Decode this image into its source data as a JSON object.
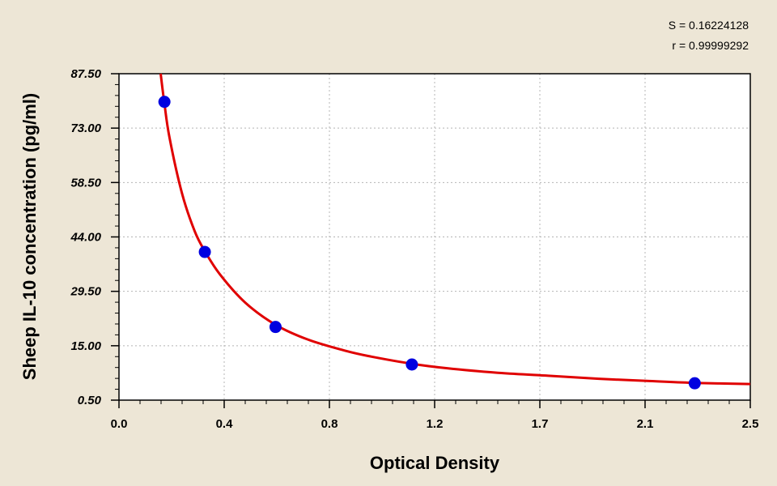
{
  "stats": {
    "s": "S = 0.16224128",
    "r": "r = 0.99999292"
  },
  "chart_data": {
    "type": "scatter",
    "xlabel": "Optical Density",
    "ylabel": "Sheep IL-10 concentration (pg/ml)",
    "xlim": [
      0.0,
      2.5
    ],
    "ylim": [
      0.5,
      87.5
    ],
    "x_ticks": [
      "0.0",
      "0.4",
      "0.8",
      "1.2",
      "1.7",
      "2.1",
      "2.5"
    ],
    "y_ticks": [
      "0.50",
      "15.00",
      "29.50",
      "44.00",
      "58.50",
      "73.00",
      "87.50"
    ],
    "grid": true,
    "series": [
      {
        "kind": "points",
        "color": "#0000e0",
        "x": [
          0.18,
          0.34,
          0.62,
          1.16,
          2.28
        ],
        "y": [
          80.0,
          40.0,
          20.0,
          10.0,
          5.0
        ]
      },
      {
        "kind": "fit-curve",
        "color": "#e00000",
        "x": [
          0.165,
          0.18,
          0.2,
          0.25,
          0.3,
          0.34,
          0.4,
          0.5,
          0.62,
          0.75,
          0.9,
          1.0,
          1.16,
          1.3,
          1.5,
          1.7,
          1.9,
          2.1,
          2.28,
          2.5
        ],
        "y": [
          87.5,
          79.5,
          70.5,
          55.5,
          45.5,
          40.2,
          34.0,
          26.5,
          20.6,
          16.6,
          13.6,
          12.1,
          10.2,
          9.0,
          7.8,
          7.0,
          6.2,
          5.6,
          5.1,
          4.8
        ]
      }
    ]
  }
}
